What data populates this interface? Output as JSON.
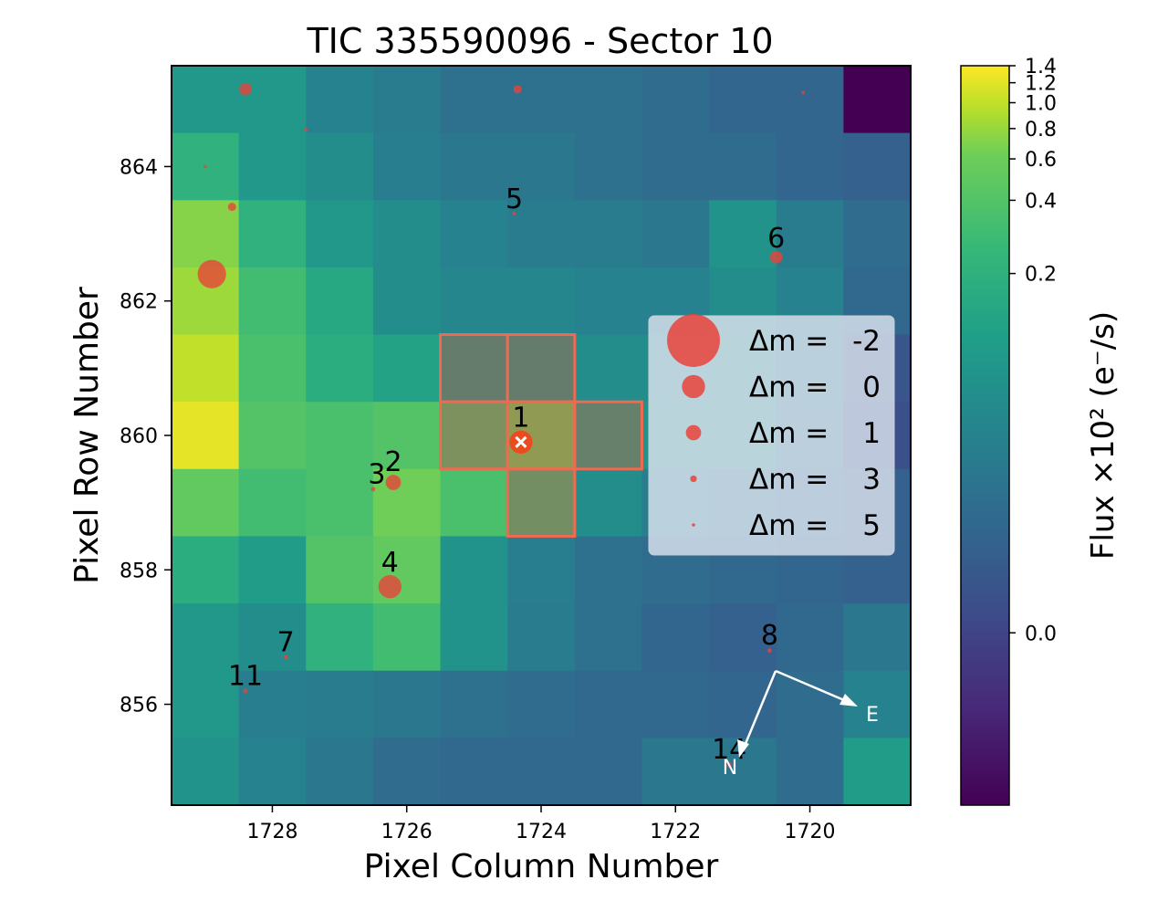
{
  "chart_data": {
    "type": "heatmap",
    "title": "TIC 335590096 - Sector 10",
    "xlabel": "Pixel Column Number",
    "ylabel": "Pixel Row Number",
    "xlim": [
      1729.5,
      1718.5
    ],
    "ylim": [
      854.5,
      865.5
    ],
    "xticks": [
      1728,
      1726,
      1724,
      1722,
      1720
    ],
    "xtick_labels": [
      "1728",
      "1726",
      "1724",
      "1722",
      "1720"
    ],
    "yticks": [
      856,
      858,
      860,
      862,
      864
    ],
    "ytick_labels": [
      "856",
      "858",
      "860",
      "862",
      "864"
    ],
    "columns": [
      1729,
      1728,
      1727,
      1726,
      1725,
      1724,
      1723,
      1722,
      1721,
      1720,
      1719
    ],
    "rows": [
      865,
      864,
      863,
      862,
      861,
      860,
      859,
      858,
      857,
      856,
      855
    ],
    "flux_levels_note": "values are colormap positions 0 (dark purple) to 1 (yellow), rows listed top (865) to bottom (855)",
    "flux": [
      [
        0.6,
        0.6,
        0.5,
        0.47,
        0.42,
        0.42,
        0.42,
        0.4,
        0.37,
        0.37,
        0.0
      ],
      [
        0.72,
        0.6,
        0.55,
        0.48,
        0.45,
        0.45,
        0.42,
        0.4,
        0.4,
        0.37,
        0.35
      ],
      [
        0.9,
        0.72,
        0.6,
        0.55,
        0.5,
        0.47,
        0.47,
        0.45,
        0.58,
        0.47,
        0.4
      ],
      [
        0.92,
        0.78,
        0.68,
        0.55,
        0.52,
        0.52,
        0.5,
        0.5,
        0.55,
        0.5,
        0.38
      ],
      [
        0.95,
        0.8,
        0.7,
        0.65,
        0.62,
        0.62,
        0.55,
        0.55,
        0.58,
        0.47,
        0.3
      ],
      [
        0.98,
        0.82,
        0.8,
        0.82,
        0.78,
        0.85,
        0.65,
        0.58,
        0.58,
        0.45,
        0.28
      ],
      [
        0.85,
        0.78,
        0.8,
        0.88,
        0.8,
        0.75,
        0.55,
        0.48,
        0.45,
        0.4,
        0.35
      ],
      [
        0.7,
        0.62,
        0.82,
        0.85,
        0.58,
        0.48,
        0.42,
        0.4,
        0.38,
        0.37,
        0.35
      ],
      [
        0.6,
        0.55,
        0.72,
        0.78,
        0.58,
        0.47,
        0.42,
        0.37,
        0.35,
        0.38,
        0.45
      ],
      [
        0.6,
        0.48,
        0.47,
        0.45,
        0.42,
        0.4,
        0.38,
        0.38,
        0.37,
        0.4,
        0.5
      ],
      [
        0.58,
        0.5,
        0.45,
        0.4,
        0.38,
        0.38,
        0.38,
        0.45,
        0.45,
        0.4,
        0.62
      ]
    ],
    "aperture_pixels": [
      [
        1725,
        861
      ],
      [
        1724,
        861
      ],
      [
        1725,
        860
      ],
      [
        1724,
        860
      ],
      [
        1723,
        860
      ],
      [
        1724,
        859
      ]
    ],
    "stars": [
      {
        "label": "1",
        "col": 1724.3,
        "row": 859.9,
        "dm": 0,
        "target": true
      },
      {
        "label": "2",
        "col": 1726.2,
        "row": 859.3,
        "dm": 1
      },
      {
        "label": "3",
        "col": 1726.5,
        "row": 859.2,
        "dm": 4
      },
      {
        "label": "4",
        "col": 1726.25,
        "row": 857.75,
        "dm": 0
      },
      {
        "label": "5",
        "col": 1724.4,
        "row": 863.3,
        "dm": 5
      },
      {
        "label": "6",
        "col": 1720.5,
        "row": 862.65,
        "dm": 1.5
      },
      {
        "label": "7",
        "col": 1727.8,
        "row": 856.7,
        "dm": 4
      },
      {
        "label": "8",
        "col": 1720.6,
        "row": 856.8,
        "dm": 4
      },
      {
        "label": "11",
        "col": 1728.4,
        "row": 856.2,
        "dm": 4
      },
      {
        "label": "14",
        "col": 1721.2,
        "row": 855.1,
        "dm": 3.5
      },
      {
        "label": "",
        "col": 1728.4,
        "row": 865.15,
        "dm": 1.5
      },
      {
        "label": "",
        "col": 1724.35,
        "row": 865.15,
        "dm": 2.5
      },
      {
        "label": "",
        "col": 1728.6,
        "row": 863.4,
        "dm": 2.5
      },
      {
        "label": "",
        "col": 1728.9,
        "row": 862.4,
        "dm": -0.5
      },
      {
        "label": "",
        "col": 1729.0,
        "row": 864.0,
        "dm": 5
      },
      {
        "label": "",
        "col": 1727.5,
        "row": 864.55,
        "dm": 5
      },
      {
        "label": "",
        "col": 1720.1,
        "row": 865.1,
        "dm": 5
      }
    ],
    "legend": {
      "placement": "center-right",
      "prefix": "Δm =",
      "entries": [
        {
          "label": "-2",
          "dm": -2
        },
        {
          "label": "0",
          "dm": 0
        },
        {
          "label": "1",
          "dm": 1
        },
        {
          "label": "3",
          "dm": 3
        },
        {
          "label": "5",
          "dm": 5
        }
      ]
    },
    "compass": {
      "east_label": "E",
      "north_label": "N"
    },
    "colorbar": {
      "label": "Flux ×10² (e⁻/s)",
      "ticks": [
        {
          "label": "1.4",
          "level": 1.0
        },
        {
          "label": "1.2",
          "level": 0.977
        },
        {
          "label": "1.0",
          "level": 0.95
        },
        {
          "label": "0.8",
          "level": 0.915
        },
        {
          "label": "0.6",
          "level": 0.874
        },
        {
          "label": "0.4",
          "level": 0.818
        },
        {
          "label": "0.2",
          "level": 0.719
        },
        {
          "label": "0.0",
          "level": 0.233
        }
      ]
    },
    "colors": {
      "marker": "#e8433a",
      "marker_target": "#f0481c",
      "aperture_edge": "#ef6a50",
      "aperture_fill": "#e8433a",
      "legend_bg": "#dce3ee",
      "frame": "#000000"
    }
  }
}
